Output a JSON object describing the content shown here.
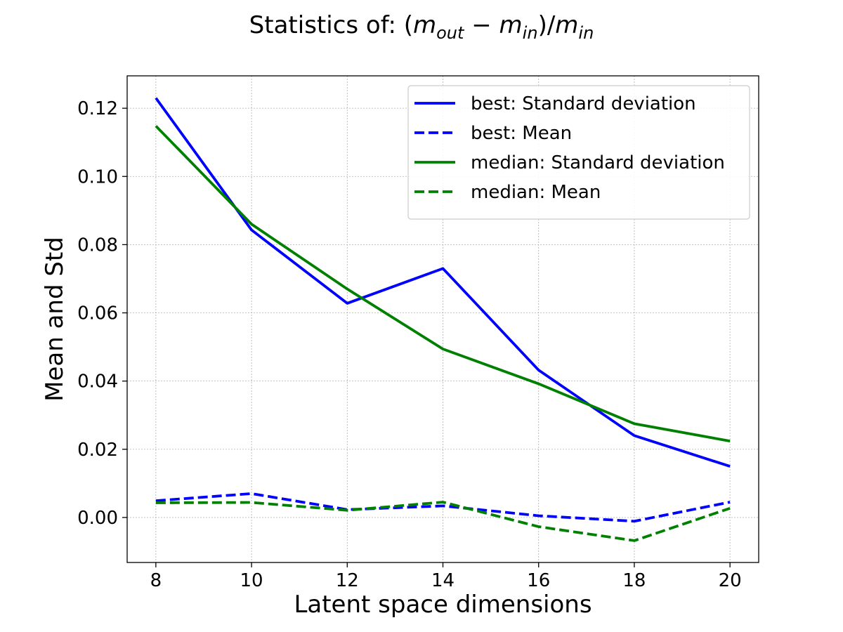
{
  "chart_data": {
    "type": "line",
    "title": {
      "prefix": "Statistics of: ",
      "math": [
        {
          "text": "(",
          "style": "normal"
        },
        {
          "text": "m",
          "style": "italic"
        },
        {
          "text": "out",
          "style": "italic-sub"
        },
        {
          "text": " − ",
          "style": "normal"
        },
        {
          "text": "m",
          "style": "italic"
        },
        {
          "text": "in",
          "style": "italic-sub"
        },
        {
          "text": ")/",
          "style": "normal"
        },
        {
          "text": "m",
          "style": "italic"
        },
        {
          "text": "in",
          "style": "italic-sub"
        }
      ]
    },
    "xlabel": "Latent space dimensions",
    "ylabel": "Mean and Std",
    "x": [
      8,
      10,
      12,
      14,
      16,
      18,
      20
    ],
    "xlim": [
      7.4,
      20.6
    ],
    "ylim": [
      -0.0132,
      0.1295
    ],
    "xticks": [
      8,
      10,
      12,
      14,
      16,
      18,
      20
    ],
    "xtick_labels": [
      "8",
      "10",
      "12",
      "14",
      "16",
      "18",
      "20"
    ],
    "yticks": [
      0.0,
      0.02,
      0.04,
      0.06,
      0.08,
      0.1,
      0.12
    ],
    "ytick_labels": [
      "0.00",
      "0.02",
      "0.04",
      "0.06",
      "0.08",
      "0.10",
      "0.12"
    ],
    "grid": true,
    "legend_position": "top-right",
    "series": [
      {
        "name": "best: Standard deviation",
        "color": "#0000ff",
        "dash": "solid",
        "values": [
          0.123,
          0.0843,
          0.0628,
          0.073,
          0.0432,
          0.024,
          0.015
        ]
      },
      {
        "name": "best: Mean",
        "color": "#0000ff",
        "dash": "dashed",
        "values": [
          0.0049,
          0.007,
          0.0023,
          0.0034,
          0.0005,
          -0.0011,
          0.0045
        ]
      },
      {
        "name": "median: Standard deviation",
        "color": "#008000",
        "dash": "solid",
        "values": [
          0.1148,
          0.086,
          0.067,
          0.0494,
          0.0392,
          0.0275,
          0.0224
        ]
      },
      {
        "name": "median: Mean",
        "color": "#008000",
        "dash": "dashed",
        "values": [
          0.0043,
          0.0044,
          0.0021,
          0.0045,
          -0.0027,
          -0.0068,
          0.0027
        ]
      }
    ]
  }
}
